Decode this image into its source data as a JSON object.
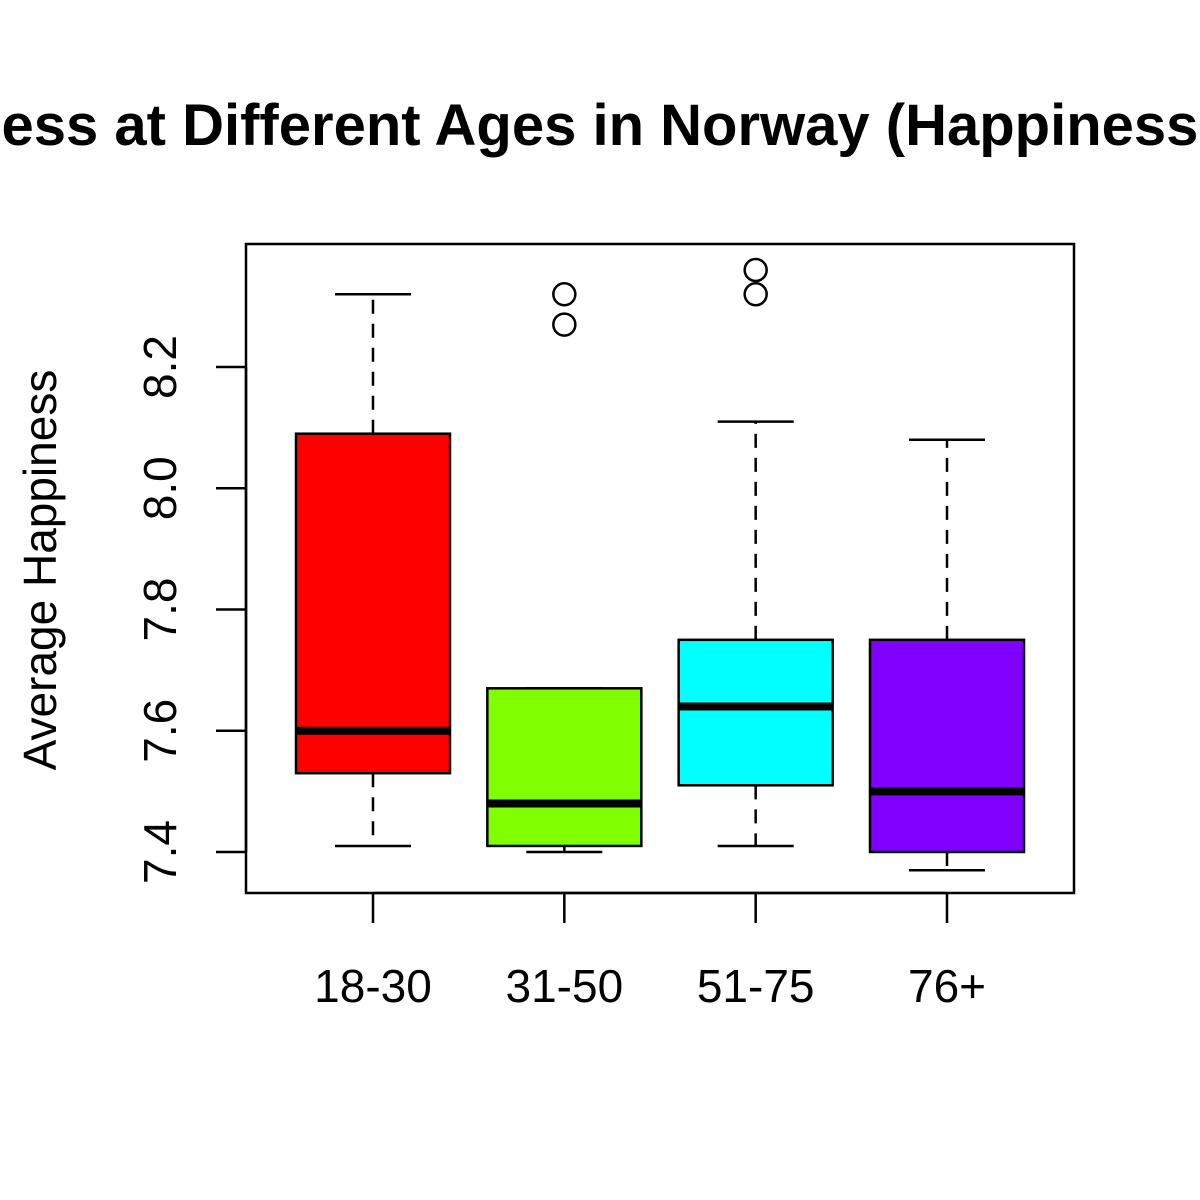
{
  "chart_data": {
    "type": "boxplot",
    "title": "Happiness at Different Ages in Norway (Happiness Score)",
    "xlabel": "",
    "ylabel": "Average Happiness",
    "ylim": [
      7.33,
      8.4
    ],
    "yticks": [
      7.4,
      7.6,
      7.8,
      8.0,
      8.2
    ],
    "ytick_labels": [
      "7.4",
      "7.6",
      "7.8",
      "8.0",
      "8.2"
    ],
    "grid": false,
    "categories": [
      "18-30",
      "31-50",
      "51-75",
      "76+"
    ],
    "boxes": [
      {
        "category": "18-30",
        "color": "#ff0000",
        "whisker_low": 7.41,
        "q1": 7.53,
        "median": 7.6,
        "q3": 8.09,
        "whisker_high": 8.32,
        "outliers": []
      },
      {
        "category": "31-50",
        "color": "#80ff00",
        "whisker_low": 7.4,
        "q1": 7.41,
        "median": 7.48,
        "q3": 7.67,
        "whisker_high": 7.67,
        "outliers": [
          8.27,
          8.32
        ]
      },
      {
        "category": "51-75",
        "color": "#00ffff",
        "whisker_low": 7.41,
        "q1": 7.51,
        "median": 7.64,
        "q3": 7.75,
        "whisker_high": 8.11,
        "outliers": [
          8.32,
          8.36
        ]
      },
      {
        "category": "76+",
        "color": "#8000ff",
        "whisker_low": 7.37,
        "q1": 7.4,
        "median": 7.5,
        "q3": 7.75,
        "whisker_high": 8.08,
        "outliers": []
      }
    ]
  }
}
